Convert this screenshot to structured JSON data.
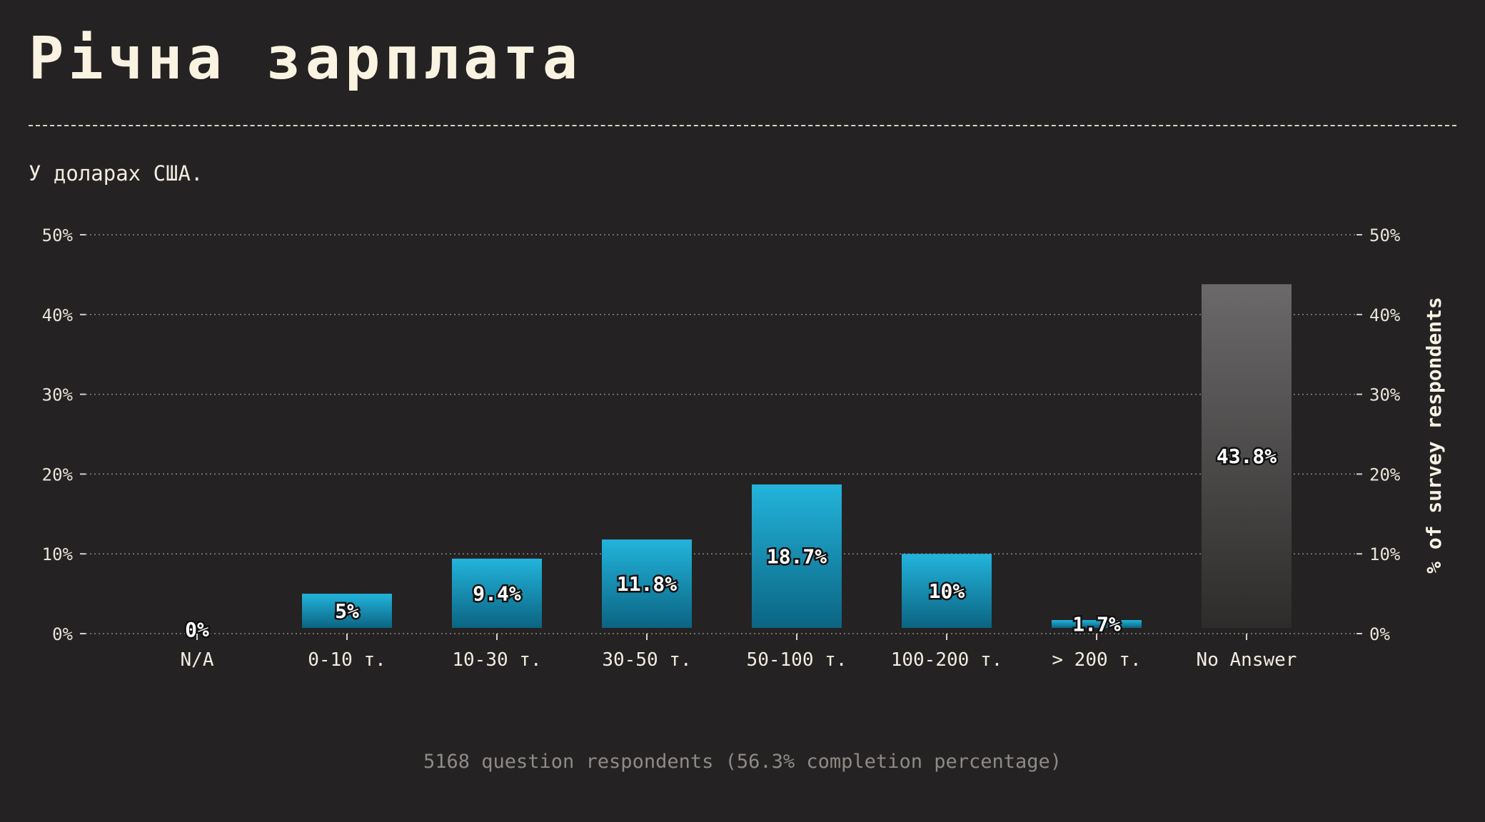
{
  "header": {
    "title": "Річна зарплата",
    "subtitle": "У доларах США."
  },
  "footer": {
    "note": "5168 question respondents (56.3% completion percentage)"
  },
  "colors": {
    "background": "#252223",
    "bar_top": "#23b4dc",
    "bar_bottom": "#0b6482",
    "noanswer_top": "#6b6969",
    "noanswer_bottom": "#2e2b2b",
    "grid": "#8a8682"
  },
  "chart_data": {
    "type": "bar",
    "categories": [
      "N/A",
      "0-10 т.",
      "10-30 т.",
      "30-50 т.",
      "50-100 т.",
      "100-200 т.",
      "> 200 т.",
      "No Answer"
    ],
    "values": [
      0,
      5,
      9.4,
      11.8,
      18.7,
      10,
      1.7,
      43.8
    ],
    "value_labels": [
      "0%",
      "5%",
      "9.4%",
      "11.8%",
      "18.7%",
      "10%",
      "1.7%",
      "43.8%"
    ],
    "ylabel": "% of survey respondents",
    "ylim": [
      0,
      50
    ],
    "yticks": [
      0,
      10,
      20,
      30,
      40,
      50
    ],
    "ytick_labels": [
      "0%",
      "10%",
      "20%",
      "30%",
      "40%",
      "50%"
    ],
    "grid": true,
    "axis_position": "both"
  }
}
